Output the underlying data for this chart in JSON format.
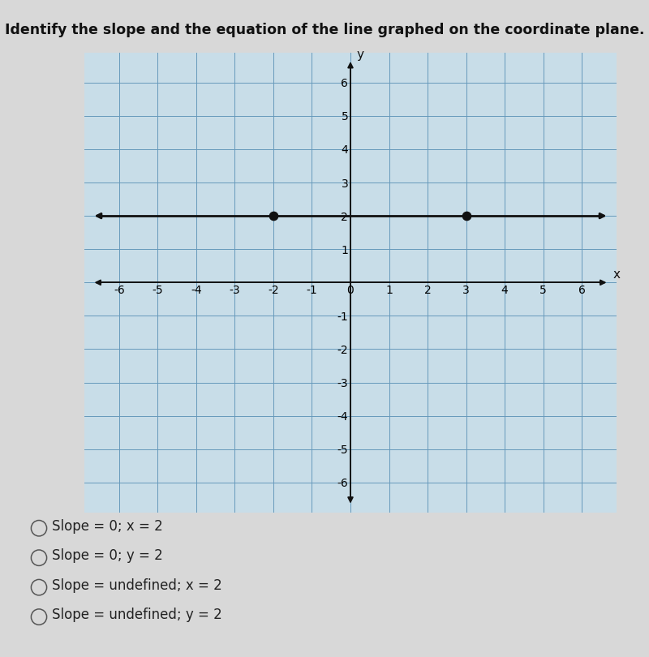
{
  "title": "Identify the slope and the equation of the line graphed on the coordinate plane.",
  "title_fontsize": 12.5,
  "bg_color": "#d8d8d8",
  "plot_bg_color": "#c8dde8",
  "grid_color": "#6699bb",
  "axis_color": "#111111",
  "line_y": 2,
  "line_color": "#111111",
  "line_width": 2.0,
  "points": [
    [
      -2,
      2
    ],
    [
      3,
      2
    ]
  ],
  "point_color": "#111111",
  "point_size": 55,
  "xlim": [
    -6.5,
    6.5
  ],
  "ylim": [
    -6.5,
    6.5
  ],
  "xticks": [
    -6,
    -5,
    -4,
    -3,
    -2,
    -1,
    0,
    1,
    2,
    3,
    4,
    5,
    6
  ],
  "yticks": [
    -6,
    -5,
    -4,
    -3,
    -2,
    -1,
    1,
    2,
    3,
    4,
    5,
    6
  ],
  "tick_fontsize": 10,
  "choices": [
    "Slope = 0; x = 2",
    "Slope = 0; y = 2",
    "Slope = undefined; x = 2",
    "Slope = undefined; y = 2"
  ],
  "choice_fontsize": 12
}
